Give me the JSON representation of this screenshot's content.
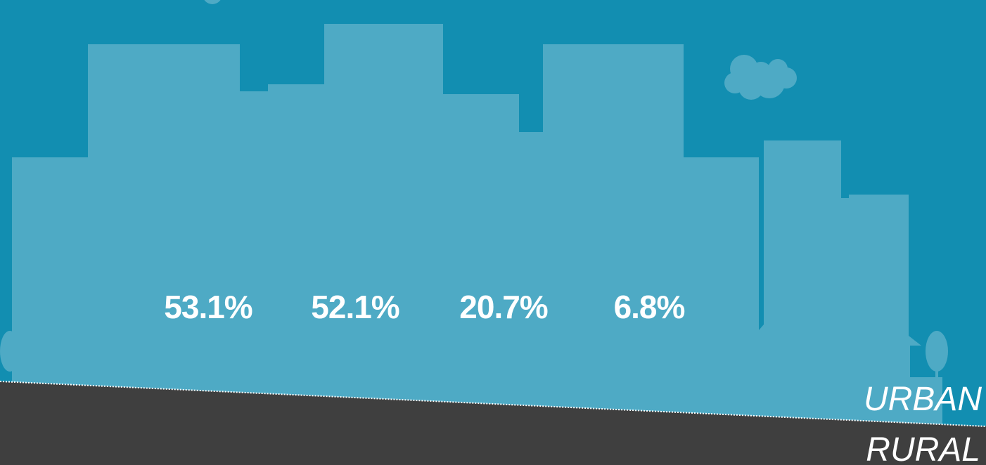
{
  "stats": [
    "53.1%",
    "52.1%",
    "20.7%",
    "6.8%"
  ],
  "labels": {
    "urban": "URBAN",
    "rural": "RURAL"
  }
}
